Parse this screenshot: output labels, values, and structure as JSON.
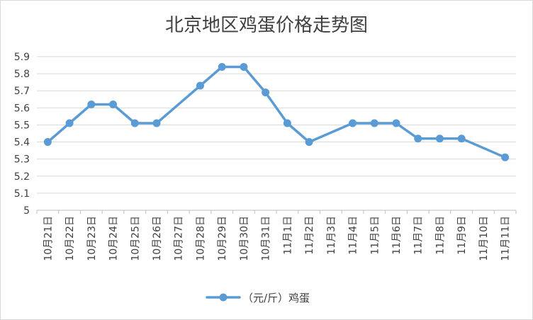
{
  "chart_data": {
    "type": "line",
    "title": "北京地区鸡蛋价格走势图",
    "xlabel": "",
    "ylabel": "",
    "ylim": [
      5,
      5.9
    ],
    "y_ticks": [
      "5.9",
      "5.8",
      "5.7",
      "5.6",
      "5.5",
      "5.4",
      "5.3",
      "5.2",
      "5.1",
      "5"
    ],
    "categories": [
      "10月21日",
      "10月22日",
      "10月23日",
      "10月24日",
      "10月25日",
      "10月26日",
      "10月27日",
      "10月28日",
      "10月29日",
      "10月30日",
      "10月31日",
      "11月1日",
      "11月2日",
      "11月3日",
      "11月4日",
      "11月5日",
      "11月6日",
      "11月7日",
      "11月8日",
      "11月9日",
      "11月10日",
      "11月11日"
    ],
    "series": [
      {
        "name": "（元/斤）鸡蛋",
        "color": "#5b9bd5",
        "values": [
          5.4,
          5.51,
          5.62,
          5.62,
          5.51,
          5.51,
          null,
          5.73,
          5.84,
          5.84,
          5.69,
          5.51,
          5.4,
          null,
          5.51,
          5.51,
          5.51,
          5.42,
          5.42,
          5.42,
          null,
          5.31
        ]
      }
    ],
    "grid": true,
    "legend_position": "bottom"
  }
}
